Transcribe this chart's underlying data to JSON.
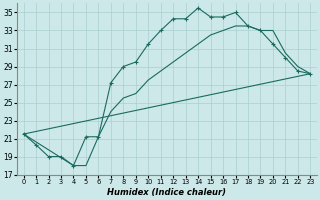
{
  "xlabel": "Humidex (Indice chaleur)",
  "bg_color": "#cce8e8",
  "line_color": "#1a6b5e",
  "grid_color": "#aacfcf",
  "xlim": [
    -0.5,
    23.5
  ],
  "ylim": [
    17,
    36
  ],
  "xticks": [
    0,
    1,
    2,
    3,
    4,
    5,
    6,
    7,
    8,
    9,
    10,
    11,
    12,
    13,
    14,
    15,
    16,
    17,
    18,
    19,
    20,
    21,
    22,
    23
  ],
  "yticks": [
    17,
    19,
    21,
    23,
    25,
    27,
    29,
    31,
    33,
    35
  ],
  "line1_x": [
    0,
    1,
    2,
    3,
    4,
    5,
    6,
    7,
    8,
    9,
    10,
    11,
    12,
    13,
    14,
    15,
    16,
    17,
    18,
    19,
    20,
    21,
    22,
    23
  ],
  "line1_y": [
    21.5,
    20.3,
    19.0,
    19.0,
    18.0,
    21.2,
    21.2,
    27.2,
    29.0,
    29.5,
    31.5,
    33.0,
    34.3,
    34.3,
    35.5,
    34.5,
    34.5,
    35.0,
    33.5,
    33.0,
    31.5,
    30.0,
    28.5,
    28.2
  ],
  "line2_x": [
    0,
    23
  ],
  "line2_y": [
    21.5,
    28.2
  ],
  "line3_x": [
    0,
    4,
    5,
    6,
    7,
    8,
    9,
    10,
    11,
    12,
    13,
    14,
    15,
    16,
    17,
    18,
    19,
    20,
    21,
    22,
    23
  ],
  "line3_y": [
    21.5,
    18.0,
    18.0,
    21.2,
    24.0,
    25.5,
    26.0,
    27.5,
    28.5,
    29.5,
    30.5,
    31.5,
    32.5,
    33.0,
    33.5,
    33.5,
    33.0,
    33.0,
    30.5,
    29.0,
    28.2
  ]
}
